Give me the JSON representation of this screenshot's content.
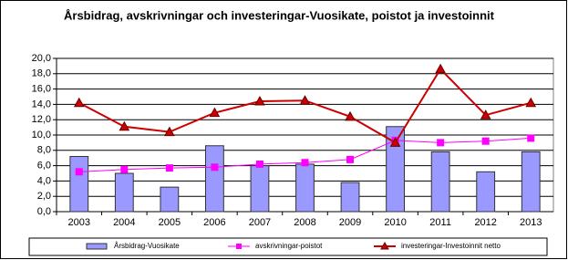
{
  "chart_data": {
    "type": "combo",
    "title": "Årsbidrag, avskrivningar och investeringar-Vuosikate, poistot ja investoinnit",
    "categories": [
      "2003",
      "2004",
      "2005",
      "2006",
      "2007",
      "2008",
      "2009",
      "2010",
      "2011",
      "2012",
      "2013"
    ],
    "series": [
      {
        "name": "Årsbidrag-Vuosikate",
        "type": "bar",
        "color": "#9999ff",
        "values": [
          7.2,
          5.0,
          3.2,
          8.6,
          6.0,
          6.2,
          3.8,
          11.1,
          7.8,
          5.2,
          7.8
        ]
      },
      {
        "name": "avskrivningar-poistot",
        "type": "line",
        "marker": "square",
        "color": "#ff00ff",
        "values": [
          5.2,
          5.5,
          5.7,
          5.8,
          6.2,
          6.4,
          6.8,
          9.3,
          9.0,
          9.2,
          9.6
        ]
      },
      {
        "name": "investeringar-Investoinnit netto",
        "type": "line",
        "marker": "triangle",
        "color": "#cc0000",
        "values": [
          14.2,
          11.1,
          10.4,
          12.9,
          14.4,
          14.5,
          12.4,
          9.0,
          18.6,
          12.6,
          14.2
        ]
      }
    ],
    "ylim": [
      0,
      20
    ],
    "yticks": [
      {
        "value": 0,
        "label": "0,0"
      },
      {
        "value": 2,
        "label": "2,0"
      },
      {
        "value": 4,
        "label": "4,0"
      },
      {
        "value": 6,
        "label": "6,0"
      },
      {
        "value": 8,
        "label": "8,0"
      },
      {
        "value": 10,
        "label": "10,0"
      },
      {
        "value": 12,
        "label": "12,0"
      },
      {
        "value": 14,
        "label": "14,0"
      },
      {
        "value": 16,
        "label": "16,0"
      },
      {
        "value": 18,
        "label": "18,0"
      },
      {
        "value": 20,
        "label": "20,0"
      }
    ],
    "grid": true,
    "legend": "bottom"
  }
}
